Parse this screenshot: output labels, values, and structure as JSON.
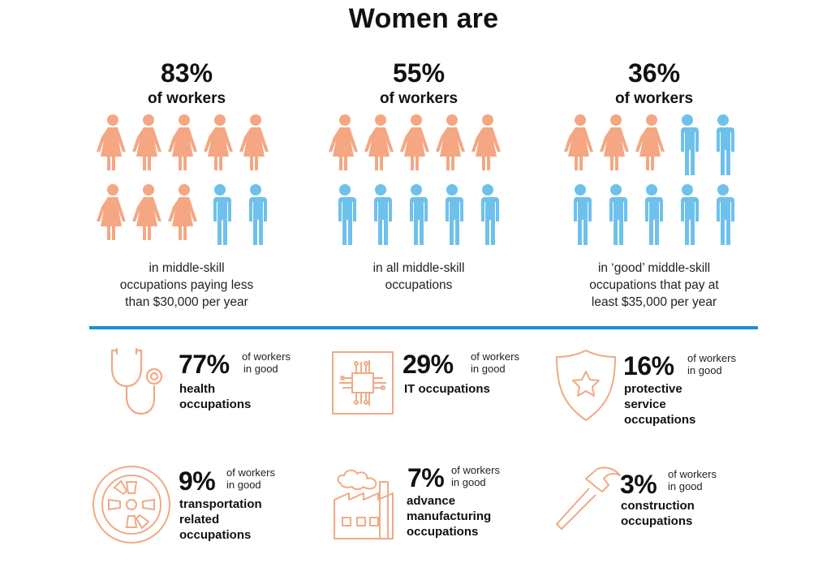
{
  "title": "Women are",
  "colors": {
    "woman": "#f4a782",
    "man": "#6ec1ec",
    "accent_line": "#1a8fd6",
    "icon_stroke": "#f2a985"
  },
  "columns": [
    {
      "percent": "83%",
      "subtitle": "of workers",
      "women": 8,
      "men": 2,
      "desc": [
        "in middle-skill",
        "occupations paying less",
        "than $30,000 per year"
      ]
    },
    {
      "percent": "55%",
      "subtitle": "of workers",
      "women": 5,
      "men": 5,
      "desc": [
        "in all middle-skill",
        "occupations"
      ]
    },
    {
      "percent": "36%",
      "subtitle": "of workers",
      "women": 3,
      "men": 7,
      "desc": [
        "in ‘good’ middle-skill",
        "occupations  that pay at",
        "least $35,000 per year"
      ]
    }
  ],
  "stats": [
    {
      "icon": "stethoscope-icon",
      "percent": "77%",
      "note": [
        "of workers",
        "in good"
      ],
      "label": [
        "health",
        "occupations"
      ]
    },
    {
      "icon": "microchip-icon",
      "percent": "29%",
      "note": [
        "of workers",
        "in good"
      ],
      "label": [
        "IT occupations"
      ]
    },
    {
      "icon": "shield-star-icon",
      "percent": "16%",
      "note": [
        "of workers",
        "in good"
      ],
      "label": [
        "protective",
        "service",
        "occupations"
      ]
    },
    {
      "icon": "wheel-icon",
      "percent": "9%",
      "note": [
        "of workers",
        "in good"
      ],
      "label": [
        "transportation",
        "related",
        "occupations"
      ]
    },
    {
      "icon": "factory-icon",
      "percent": "7%",
      "note": [
        "of workers",
        "in good"
      ],
      "label": [
        "advance",
        "manufacturing",
        "occupations"
      ]
    },
    {
      "icon": "hammer-icon",
      "percent": "3%",
      "note": [
        "of workers",
        "in good"
      ],
      "label": [
        "construction",
        "occupations"
      ]
    }
  ]
}
